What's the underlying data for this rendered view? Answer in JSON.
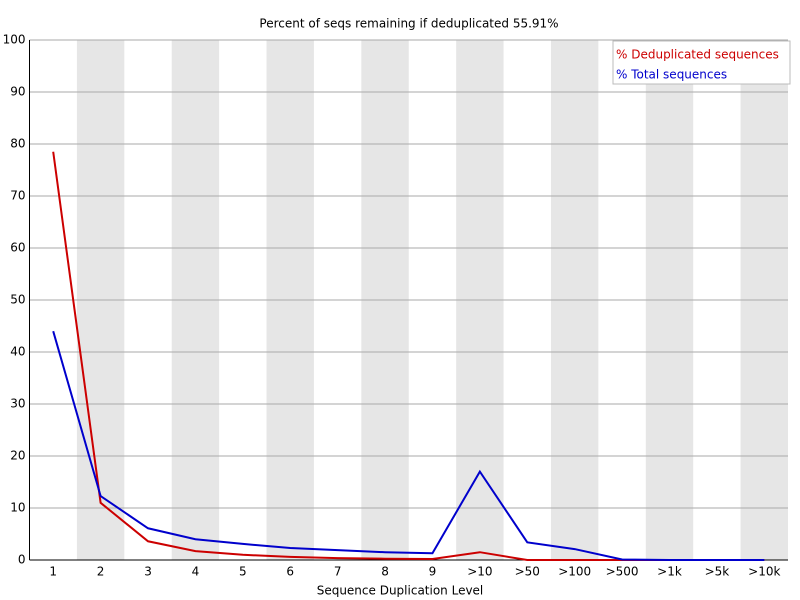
{
  "chart_data": {
    "type": "line",
    "title": "Percent of seqs remaining if deduplicated 55.91%",
    "x_label": "Sequence Duplication Level",
    "categories": [
      "1",
      "2",
      "3",
      "4",
      "5",
      "6",
      "7",
      "8",
      "9",
      ">10",
      ">50",
      ">100",
      ">500",
      ">1k",
      ">5k",
      ">10k"
    ],
    "series": [
      {
        "name": "% Deduplicated sequences",
        "color": "#cc0000",
        "values": [
          78.5,
          11,
          3.6,
          1.7,
          1.0,
          0.6,
          0.35,
          0.25,
          0.2,
          1.5,
          0,
          0,
          0,
          0,
          0,
          0
        ]
      },
      {
        "name": "% Total sequences",
        "color": "#0000cc",
        "values": [
          44,
          12.3,
          6.1,
          4.0,
          3.1,
          2.3,
          1.9,
          1.5,
          1.3,
          17,
          3.4,
          2.1,
          0.1,
          0,
          0,
          0
        ]
      }
    ],
    "ylim": [
      0,
      100
    ],
    "yticks": [
      0,
      10,
      20,
      30,
      40,
      50,
      60,
      70,
      80,
      90,
      100
    ],
    "grid": true,
    "band_color": "#e6e6e6",
    "legend": "top-right"
  }
}
